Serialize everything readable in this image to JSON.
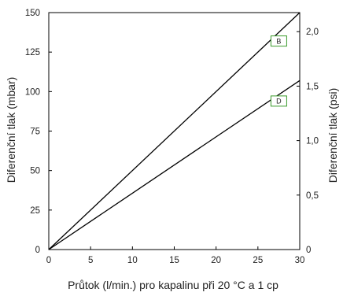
{
  "chart_data": {
    "type": "line",
    "title": "",
    "xlabel": "Průtok (l/min.) pro kapalinu při 20 °C a 1 cp",
    "ylabel": "Diferenční tlak (mbar)",
    "y2label": "Diferenční tlak (psi)",
    "xlim": [
      0,
      30
    ],
    "ylim": [
      0,
      150
    ],
    "y2lim": [
      0,
      2.175
    ],
    "xticks": [
      "0",
      "5",
      "10",
      "15",
      "20",
      "25",
      "30"
    ],
    "yticks": [
      "0",
      "25",
      "50",
      "75",
      "100",
      "125",
      "150"
    ],
    "y2ticks": [
      {
        "value": 0,
        "label": "0"
      },
      {
        "value": 0.5,
        "label": "0,5"
      },
      {
        "value": 1.0,
        "label": "1,0"
      },
      {
        "value": 1.5,
        "label": "1,5"
      },
      {
        "value": 2.0,
        "label": "2,0"
      }
    ],
    "grid": false,
    "legend": "inline-labels",
    "series": [
      {
        "name": "B",
        "x": [
          0,
          30
        ],
        "y": [
          0,
          150
        ],
        "label_at": [
          27.5,
          132
        ],
        "color": "#000000",
        "label_border": "#3a9a2a"
      },
      {
        "name": "D",
        "x": [
          0,
          30
        ],
        "y": [
          0,
          107
        ],
        "label_at": [
          27.5,
          94
        ],
        "color": "#000000",
        "label_border": "#3a9a2a"
      }
    ]
  }
}
